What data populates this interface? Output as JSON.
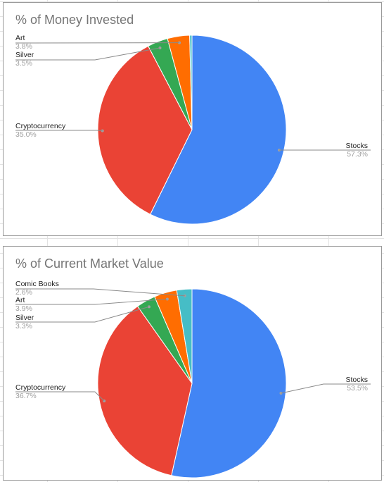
{
  "chart_data": [
    {
      "type": "pie",
      "title": "% of Money Invested",
      "slices": [
        {
          "label": "Stocks",
          "pct_label": "57.3%",
          "value": 57.3,
          "color": "#4285f4"
        },
        {
          "label": "Cryptocurrency",
          "pct_label": "35.0%",
          "value": 35.0,
          "color": "#ea4335"
        },
        {
          "label": "Silver",
          "pct_label": "3.5%",
          "value": 3.5,
          "color": "#34a853"
        },
        {
          "label": "Art",
          "pct_label": "3.8%",
          "value": 3.8,
          "color": "#ff6d01"
        },
        {
          "label": "",
          "pct_label": "",
          "value": 0.4,
          "color": "#46bdc6"
        }
      ]
    },
    {
      "type": "pie",
      "title": "% of Current Market Value",
      "slices": [
        {
          "label": "Stocks",
          "pct_label": "53.5%",
          "value": 53.5,
          "color": "#4285f4"
        },
        {
          "label": "Cryptocurrency",
          "pct_label": "36.7%",
          "value": 36.7,
          "color": "#ea4335"
        },
        {
          "label": "Silver",
          "pct_label": "3.3%",
          "value": 3.3,
          "color": "#34a853"
        },
        {
          "label": "Art",
          "pct_label": "3.9%",
          "value": 3.9,
          "color": "#ff6d01"
        },
        {
          "label": "Comic Books",
          "pct_label": "2.6%",
          "value": 2.6,
          "color": "#46bdc6"
        }
      ]
    }
  ]
}
